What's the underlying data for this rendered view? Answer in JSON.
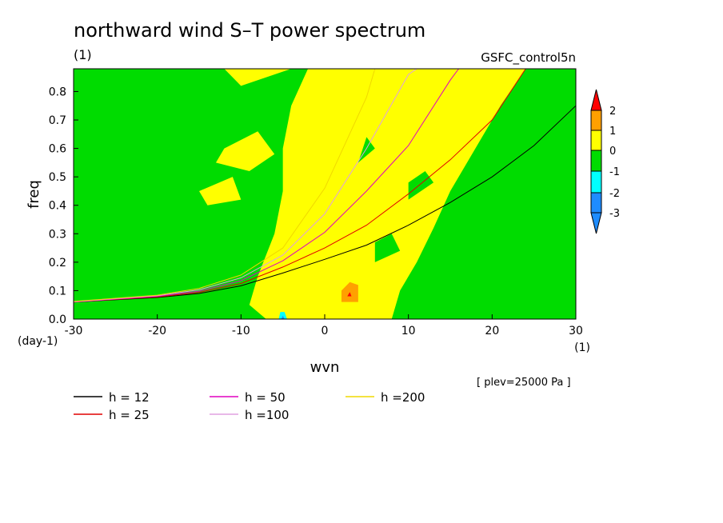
{
  "chart_data": {
    "type": "heatmap",
    "title": "northward wind S–T power spectrum",
    "subtitle_left": "(1)",
    "subtitle_right": "GSFC_control5n",
    "xlabel": "wvn",
    "ylabel": "freq",
    "x_unit": "(1)",
    "y_unit": "(day-1)",
    "xlim": [
      -30,
      30
    ],
    "ylim": [
      0,
      0.88
    ],
    "x_ticks": [
      "-30",
      "-20",
      "-10",
      "0",
      "10",
      "20",
      "30"
    ],
    "x_tick_values": [
      -30,
      -20,
      -10,
      0,
      10,
      20,
      30
    ],
    "y_ticks": [
      "0.0",
      "0.1",
      "0.2",
      "0.3",
      "0.4",
      "0.5",
      "0.6",
      "0.7",
      "0.8"
    ],
    "y_tick_values": [
      0,
      0.1,
      0.2,
      0.3,
      0.4,
      0.5,
      0.6,
      0.7,
      0.8
    ],
    "note": "[ plev=25000 Pa ]",
    "colorbar": {
      "levels": [
        "-3",
        "-2",
        "-1",
        "0",
        "1",
        "2"
      ],
      "colors": [
        "#1e8cff",
        "#00ffff",
        "#00dc00",
        "#ffff00",
        "#ffa000",
        "#ff0000"
      ],
      "bands": [
        {
          "from": "below",
          "to": -3,
          "color": "#1e8cff"
        },
        {
          "from": -3,
          "to": -2,
          "color": "#1e8cff"
        },
        {
          "from": -2,
          "to": -1,
          "color": "#00ffff"
        },
        {
          "from": -1,
          "to": 0,
          "color": "#00dc00"
        },
        {
          "from": 0,
          "to": 1,
          "color": "#ffff00"
        },
        {
          "from": 1,
          "to": 2,
          "color": "#ffa000"
        },
        {
          "from": 2,
          "to": "above",
          "color": "#ff0000"
        }
      ]
    },
    "field_description": "log10 power; background ~ -1..0 (green); a yellow (0..1) band spans wavenumbers ~-5..+12 widening with frequency, orange and red spot near wvn 3, freq 0.09",
    "dispersion_curves": [
      {
        "name": "h = 12",
        "color": "#000000",
        "points": [
          [
            -30,
            0.06
          ],
          [
            -20,
            0.076
          ],
          [
            -15,
            0.09
          ],
          [
            -10,
            0.117
          ],
          [
            -5,
            0.162
          ],
          [
            0,
            0.21
          ],
          [
            5,
            0.26
          ],
          [
            10,
            0.33
          ],
          [
            15,
            0.41
          ],
          [
            20,
            0.5
          ],
          [
            25,
            0.61
          ],
          [
            30,
            0.75
          ]
        ]
      },
      {
        "name": "h = 25",
        "color": "#e00000",
        "points": [
          [
            -30,
            0.06
          ],
          [
            -20,
            0.078
          ],
          [
            -15,
            0.094
          ],
          [
            -10,
            0.125
          ],
          [
            -5,
            0.183
          ],
          [
            0,
            0.25
          ],
          [
            5,
            0.33
          ],
          [
            10,
            0.44
          ],
          [
            15,
            0.56
          ],
          [
            20,
            0.7
          ],
          [
            24,
            0.88
          ]
        ]
      },
      {
        "name": "h = 50",
        "color": "#e000c0",
        "points": [
          [
            -30,
            0.06
          ],
          [
            -20,
            0.08
          ],
          [
            -15,
            0.098
          ],
          [
            -10,
            0.135
          ],
          [
            -5,
            0.205
          ],
          [
            0,
            0.305
          ],
          [
            5,
            0.45
          ],
          [
            10,
            0.61
          ],
          [
            15,
            0.84
          ],
          [
            16,
            0.88
          ]
        ]
      },
      {
        "name": "h =100",
        "color": "#e0a0e0",
        "points": [
          [
            -30,
            0.061
          ],
          [
            -20,
            0.082
          ],
          [
            -15,
            0.103
          ],
          [
            -10,
            0.145
          ],
          [
            -5,
            0.225
          ],
          [
            0,
            0.37
          ],
          [
            5,
            0.6
          ],
          [
            10,
            0.86
          ],
          [
            11,
            0.88
          ]
        ]
      },
      {
        "name": "h =200",
        "color": "#f0d800",
        "points": [
          [
            -30,
            0.062
          ],
          [
            -20,
            0.084
          ],
          [
            -15,
            0.108
          ],
          [
            -10,
            0.155
          ],
          [
            -5,
            0.25
          ],
          [
            0,
            0.46
          ],
          [
            5,
            0.78
          ],
          [
            6,
            0.88
          ]
        ]
      }
    ]
  },
  "legend": [
    {
      "label": "h = 12",
      "color": "#000000"
    },
    {
      "label": "h = 25",
      "color": "#e00000"
    },
    {
      "label": "h = 50",
      "color": "#e000c0"
    },
    {
      "label": "h =100",
      "color": "#e0a0e0"
    },
    {
      "label": "h =200",
      "color": "#f0d800"
    }
  ]
}
